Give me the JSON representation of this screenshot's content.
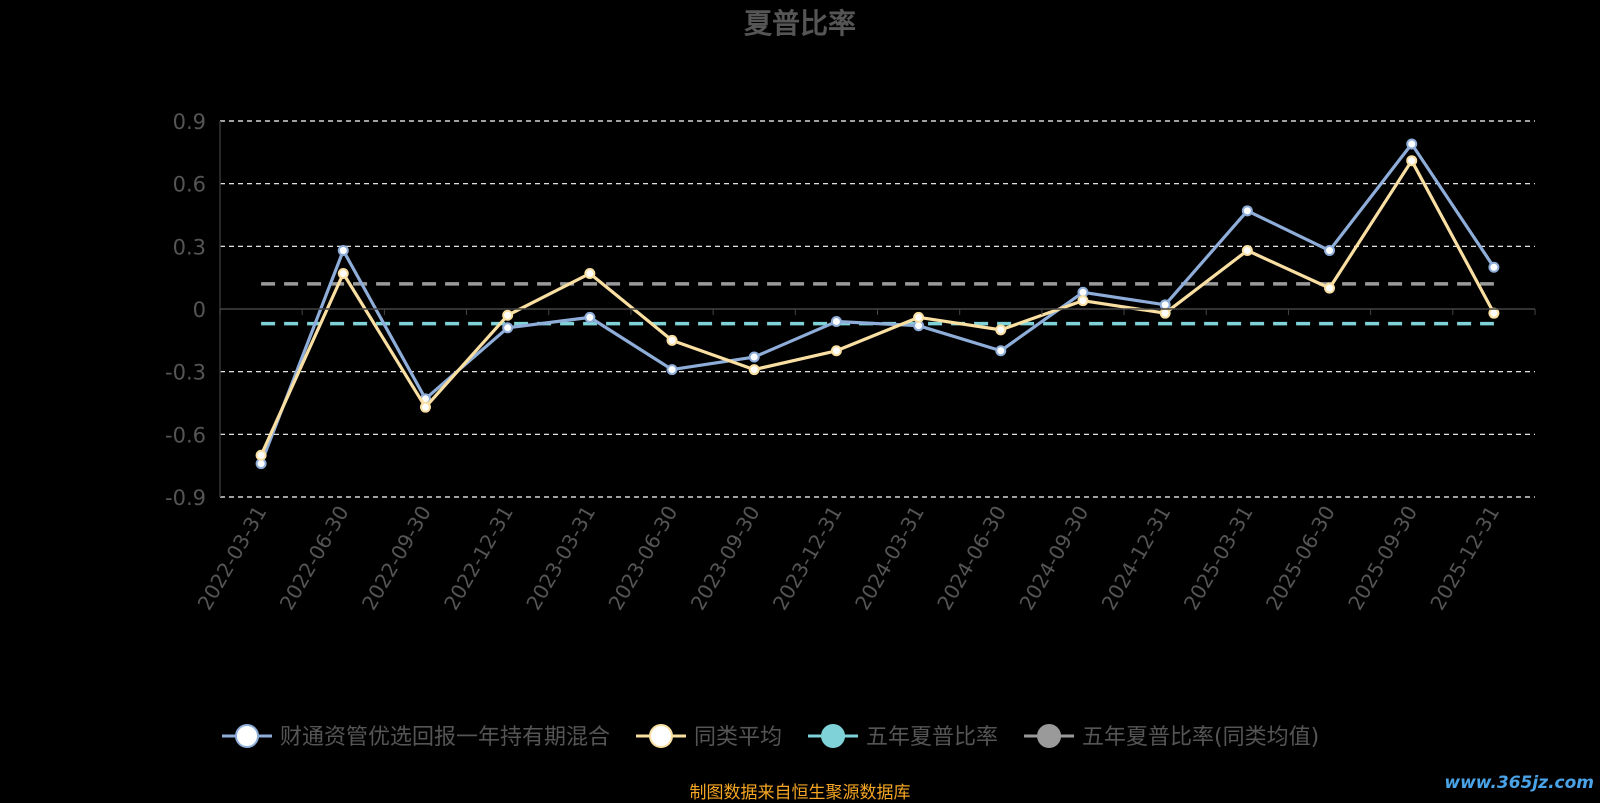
{
  "chart_data": {
    "type": "line",
    "title": "夏普比率",
    "categories": [
      "2022-03-31",
      "2022-06-30",
      "2022-09-30",
      "2022-12-31",
      "2023-03-31",
      "2023-06-30",
      "2023-09-30",
      "2023-12-31",
      "2024-03-31",
      "2024-06-30",
      "2024-09-30",
      "2024-12-31",
      "2025-03-31",
      "2025-06-30",
      "2025-09-30",
      "2025-12-31"
    ],
    "yticks": [
      "0.9",
      "0.6",
      "0.3",
      "0",
      "-0.3",
      "-0.6",
      "-0.9"
    ],
    "ylim": [
      -0.9,
      0.9
    ],
    "grid": true,
    "legend_position": "bottom",
    "series": [
      {
        "name": "财通资管优选回报一年持有期混合",
        "color": "#8eadd9",
        "values": [
          -0.74,
          0.28,
          -0.43,
          -0.09,
          -0.04,
          -0.29,
          -0.23,
          -0.06,
          -0.08,
          -0.2,
          0.08,
          0.02,
          0.47,
          0.28,
          0.79,
          0.2
        ]
      },
      {
        "name": "同类平均",
        "color": "#f9dfa1",
        "values": [
          -0.7,
          0.17,
          -0.47,
          -0.03,
          0.17,
          -0.15,
          -0.29,
          -0.2,
          -0.04,
          -0.1,
          0.04,
          -0.02,
          0.28,
          0.1,
          0.71,
          -0.02
        ]
      }
    ],
    "reference_lines": [
      {
        "name": "五年夏普比率",
        "color": "#7fd3d8",
        "value": -0.07
      },
      {
        "name": "五年夏普比率(同类均值)",
        "color": "#9a9a9a",
        "value": 0.12
      }
    ]
  },
  "legend": {
    "items": [
      {
        "label": "财通资管优选回报一年持有期混合",
        "stroke": "#8eadd9",
        "fill": "#ffffff"
      },
      {
        "label": "同类平均",
        "stroke": "#f9dfa1",
        "fill": "#ffffff"
      },
      {
        "label": "五年夏普比率",
        "stroke": "#7fd3d8",
        "fill": "#7fd3d8"
      },
      {
        "label": "五年夏普比率(同类均值)",
        "stroke": "#9a9a9a",
        "fill": "#9a9a9a"
      }
    ]
  },
  "footer": {
    "source": "制图数据来自恒生聚源数据库",
    "watermark": "www.365jz.com"
  }
}
